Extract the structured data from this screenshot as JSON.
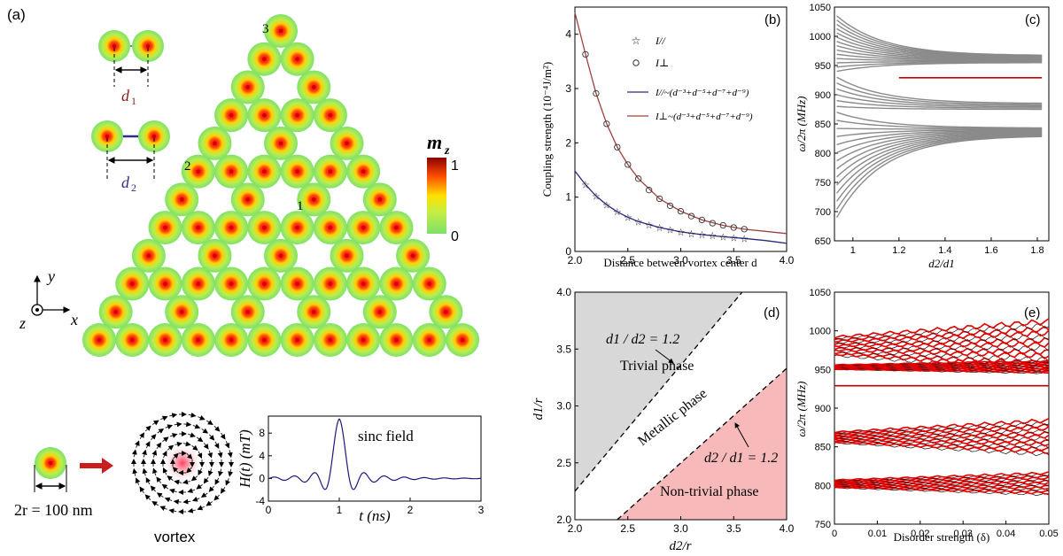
{
  "panels": {
    "a": {
      "label": "(a)",
      "d1_label": "d",
      "d1_sub": "1",
      "d2_label": "d",
      "d2_sub": "2",
      "site_labels": [
        "1",
        "2",
        "3"
      ],
      "colorbar": {
        "title": "m",
        "title_sub": "z",
        "max": "1",
        "min": "0"
      },
      "axes": {
        "x": "x",
        "y": "y",
        "z": "z"
      },
      "size_label": "2r = 100 nm",
      "vortex_label": "vortex",
      "colors": {
        "disk": "#7de06a",
        "bond": "#2e2e8c",
        "arrow": "#c81e1e"
      }
    },
    "b": {
      "label": "(b)"
    },
    "c": {
      "label": "(c)"
    },
    "d": {
      "label": "(d)"
    },
    "e": {
      "label": "(e)"
    }
  },
  "chart_data": [
    {
      "id": "a-inset",
      "type": "line",
      "title": "",
      "annotation": "sinc field",
      "xlabel": "t (ns)",
      "ylabel": "H(t) (mT)",
      "xlim": [
        0,
        3
      ],
      "ylim": [
        -4,
        11
      ],
      "xticks": [
        "0",
        "1",
        "2",
        "3"
      ],
      "yticks": [
        "-4",
        "0",
        "4",
        "8"
      ],
      "pulse": {
        "center": 1.0,
        "amplitude": 10.5,
        "width": 0.045
      },
      "color": "#1a1a7a"
    },
    {
      "id": "b",
      "type": "line",
      "xlabel": "Distance between vortex center d",
      "ylabel": "Coupling strength (10⁻⁴J/m²)",
      "xlim": [
        2.0,
        4.0
      ],
      "ylim": [
        0,
        4.5
      ],
      "xticks": [
        "2.0",
        "2.5",
        "3.0",
        "3.5",
        "4.0"
      ],
      "yticks": [
        "0",
        "1",
        "2",
        "3",
        "4"
      ],
      "legend": [
        {
          "marker": "☆",
          "text": "I//"
        },
        {
          "marker": "○",
          "text": "I⊥"
        },
        {
          "line": "#2a2a80",
          "text": "I//~(d⁻³+d⁻⁵+d⁻⁷+d⁻⁹)"
        },
        {
          "line": "#a04040",
          "text": "I⊥~(d⁻³+d⁻⁵+d⁻⁷+d⁻⁹)"
        }
      ],
      "series": [
        {
          "name": "I⊥ (symbols)",
          "x": [
            2.1,
            2.2,
            2.3,
            2.4,
            2.5,
            2.6,
            2.7,
            2.8,
            2.9,
            3.0,
            3.1,
            3.2,
            3.3,
            3.4,
            3.5,
            3.6
          ],
          "y": [
            3.63,
            2.91,
            2.35,
            1.92,
            1.6,
            1.34,
            1.13,
            0.97,
            0.84,
            0.74,
            0.65,
            0.58,
            0.52,
            0.48,
            0.44,
            0.41
          ]
        },
        {
          "name": "I// (symbols)",
          "x": [
            2.1,
            2.2,
            2.3,
            2.4,
            2.5,
            2.6,
            2.7,
            2.8,
            2.9,
            3.0,
            3.1,
            3.2,
            3.3,
            3.4,
            3.5,
            3.6
          ],
          "y": [
            1.23,
            1.02,
            0.86,
            0.73,
            0.63,
            0.55,
            0.49,
            0.44,
            0.4,
            0.36,
            0.33,
            0.31,
            0.29,
            0.27,
            0.25,
            0.24
          ]
        },
        {
          "name": "I⊥ fit",
          "x": [
            2.0,
            2.1,
            2.2,
            2.3,
            2.4,
            2.5,
            2.6,
            2.8,
            3.0,
            3.2,
            3.4,
            3.6,
            3.8,
            4.0
          ],
          "y": [
            4.4,
            3.63,
            2.91,
            2.35,
            1.92,
            1.6,
            1.34,
            0.97,
            0.74,
            0.58,
            0.48,
            0.41,
            0.37,
            0.33
          ]
        },
        {
          "name": "I// fit",
          "x": [
            2.0,
            2.1,
            2.2,
            2.3,
            2.4,
            2.5,
            2.6,
            2.8,
            3.0,
            3.2,
            3.4,
            3.6,
            3.8,
            4.0
          ],
          "y": [
            1.48,
            1.23,
            1.02,
            0.86,
            0.73,
            0.63,
            0.55,
            0.44,
            0.36,
            0.31,
            0.27,
            0.24,
            0.2,
            0.15
          ]
        }
      ]
    },
    {
      "id": "c",
      "type": "line",
      "xlabel": "d2/d1",
      "ylabel": "ω/2π (MHz)",
      "xlim": [
        0.92,
        1.85
      ],
      "ylim": [
        650,
        1050
      ],
      "xticks": [
        "1",
        "1.2",
        "1.4",
        "1.6",
        "1.8"
      ],
      "yticks": [
        "650",
        "700",
        "750",
        "800",
        "850",
        "900",
        "950",
        "1000",
        "1050"
      ],
      "corner_mode": {
        "y": 929,
        "x_start": 1.2,
        "color": "#c00000"
      },
      "bands": [
        {
          "from": [
            1035,
            940
          ],
          "to": [
            967,
            955
          ],
          "count": 14
        },
        {
          "from": [
            930,
            880
          ],
          "to": [
            885,
            875
          ],
          "count": 6
        },
        {
          "from": [
            870,
            690
          ],
          "to": [
            843,
            830
          ],
          "count": 14
        }
      ]
    },
    {
      "id": "d",
      "type": "area",
      "xlabel": "d2/r",
      "ylabel": "d1/r",
      "xlim": [
        2.0,
        4.0
      ],
      "ylim": [
        2.0,
        4.0
      ],
      "xticks": [
        "2.0",
        "2.5",
        "3.0",
        "3.5",
        "4.0"
      ],
      "yticks": [
        "2.0",
        "2.5",
        "3.0",
        "3.5",
        "4.0"
      ],
      "regions": [
        {
          "name": "Trivial phase",
          "color": "#d8d8d8"
        },
        {
          "name": "Metallic phase",
          "color": "#ffffff"
        },
        {
          "name": "Non-trivial phase",
          "color": "#f7b9b9"
        }
      ],
      "boundaries": [
        {
          "label": "d1 / d2 = 1.2",
          "ratio": 1.2,
          "type": "d1/d2"
        },
        {
          "label": "d2 / d1 = 1.2",
          "ratio": 1.2,
          "type": "d2/d1"
        }
      ]
    },
    {
      "id": "e",
      "type": "line",
      "xlabel": "Disorder strength (δ)",
      "ylabel": "ω/2π (MHz)",
      "xlim": [
        0,
        0.05
      ],
      "ylim": [
        750,
        1050
      ],
      "xticks": [
        "0",
        "0.01",
        "0.02",
        "0.03",
        "0.04",
        "0.05"
      ],
      "yticks": [
        "750",
        "800",
        "850",
        "900",
        "950",
        "1000",
        "1050"
      ],
      "corner_mode": {
        "y": 929,
        "color": "#c00000"
      },
      "bands": [
        {
          "center": 980,
          "spread0": 12,
          "spread1": 32
        },
        {
          "center": 953,
          "spread0": 3,
          "spread1": 8
        },
        {
          "center": 862,
          "spread0": 7,
          "spread1": 22
        },
        {
          "center": 802,
          "spread0": 5,
          "spread1": 14
        }
      ],
      "color": "#e00000"
    }
  ]
}
